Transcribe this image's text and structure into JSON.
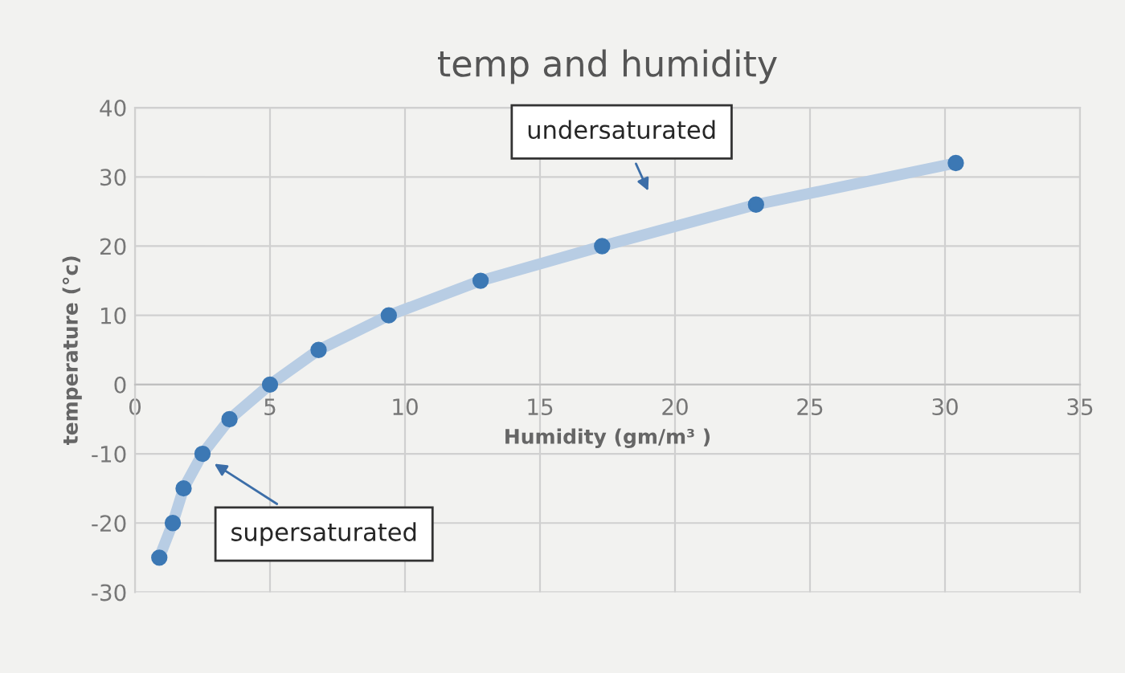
{
  "chart_data": {
    "type": "scatter",
    "title": "temp and humidity",
    "xlabel": "Humidity (gm/m³ )",
    "ylabel": "temperature (°c)",
    "series": [
      {
        "type": "line",
        "color": "#b8cde4",
        "x": [
          0.9,
          1.4,
          1.8,
          2.5,
          3.5,
          5,
          6.8,
          9.4,
          12.8,
          17.3,
          23,
          30.4
        ],
        "values": [
          -25,
          -20,
          -15,
          -10,
          -5,
          0,
          5,
          10,
          15,
          20,
          26,
          32
        ]
      },
      {
        "color": "#3c78b4",
        "x": [
          0.9,
          1.4,
          1.8,
          2.5,
          3.5,
          5,
          6.8,
          9.4,
          12.8,
          17.3,
          23,
          30.4
        ],
        "values": [
          -25,
          -20,
          -15,
          -10,
          -5,
          0,
          5,
          10,
          15,
          20,
          26,
          32
        ]
      }
    ],
    "annotations": [
      "undersaturated",
      "supersaturated"
    ],
    "xlim": [
      0,
      35
    ],
    "xticks": [
      0,
      5,
      10,
      15,
      20,
      25,
      30,
      35
    ],
    "ylim": [
      -30,
      40
    ],
    "yticks": [
      -30,
      -20,
      -10,
      0,
      10,
      20,
      30,
      40
    ],
    "grid": true,
    "legend": false
  }
}
